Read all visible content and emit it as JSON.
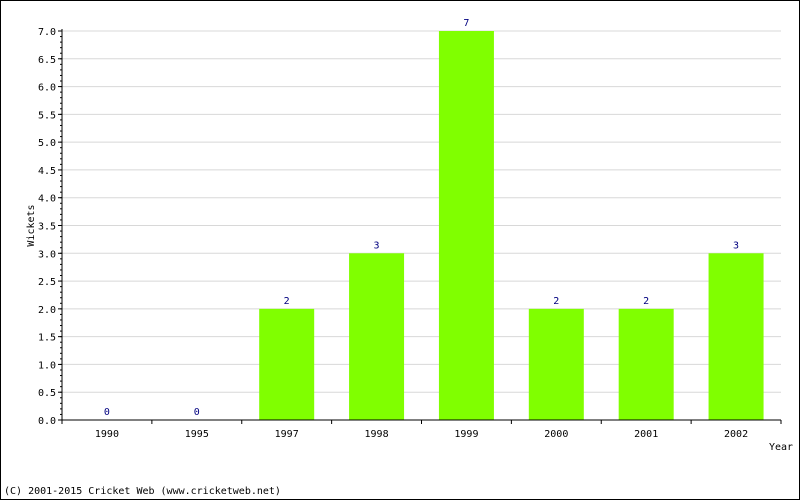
{
  "chart_data": {
    "type": "bar",
    "categories": [
      "1990",
      "1995",
      "1997",
      "1998",
      "1999",
      "2000",
      "2001",
      "2002"
    ],
    "values": [
      0,
      0,
      2,
      3,
      7,
      2,
      2,
      3
    ],
    "data_labels": [
      "0",
      "0",
      "2",
      "3",
      "7",
      "2",
      "2",
      "3"
    ],
    "xlabel": "Year",
    "ylabel": "Wickets",
    "ylim": [
      0,
      7
    ],
    "yticks": [
      "0.0",
      "0.5",
      "1.0",
      "1.5",
      "2.0",
      "2.5",
      "3.0",
      "3.5",
      "4.0",
      "4.5",
      "5.0",
      "5.5",
      "6.0",
      "6.5",
      "7.0"
    ],
    "grid": true,
    "bar_color": "#80ff00"
  },
  "footer": {
    "copyright": "(C) 2001-2015 Cricket Web (www.cricketweb.net)"
  }
}
